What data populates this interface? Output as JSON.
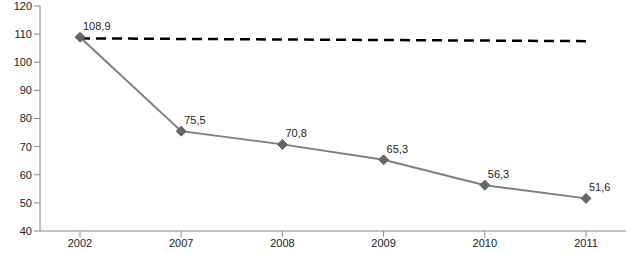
{
  "chart_data": {
    "type": "line",
    "categories": [
      "2002",
      "2007",
      "2008",
      "2009",
      "2010",
      "2011"
    ],
    "series": [
      {
        "color": "#7f7f7f",
        "marker": "diamond",
        "line_style": "solid",
        "values": [
          108.9,
          75.5,
          70.8,
          65.3,
          56.3,
          51.6
        ],
        "value_labels": [
          "108,9",
          "75,5",
          "70,8",
          "65,3",
          "56,3",
          "51,6"
        ]
      },
      {
        "color": "#000000",
        "marker": "none",
        "line_style": "dashed",
        "values": [
          108.5,
          108.3,
          108.1,
          107.9,
          107.7,
          107.5
        ]
      }
    ],
    "ylim": [
      40,
      120
    ],
    "yticks": [
      40,
      50,
      60,
      70,
      80,
      90,
      100,
      110,
      120
    ],
    "grid": false,
    "data_labels": true
  }
}
